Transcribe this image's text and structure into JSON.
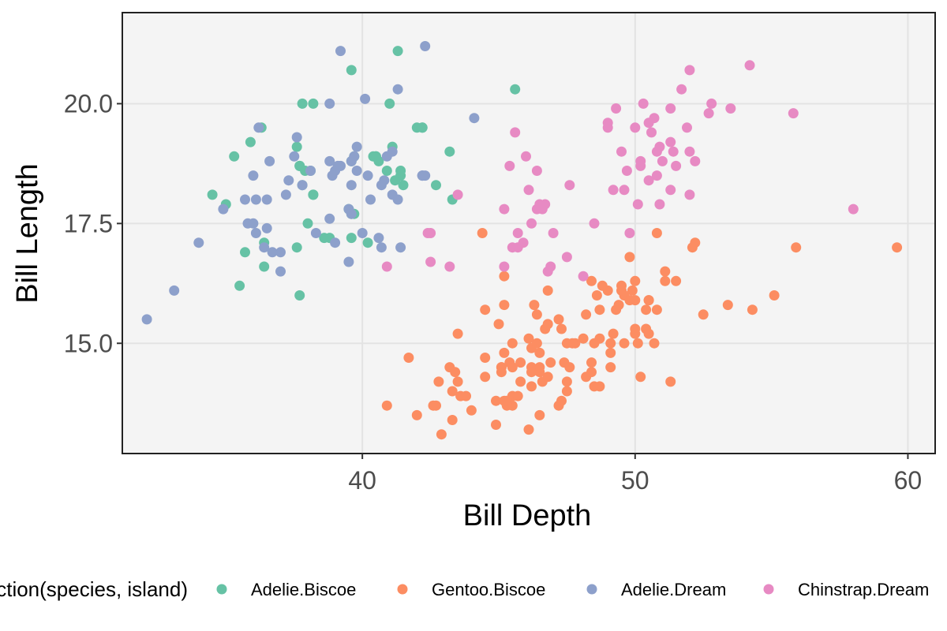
{
  "chart_data": {
    "type": "scatter",
    "xlabel": "Bill Depth",
    "ylabel": "Bill Length",
    "xlim": [
      31.2,
      61.0
    ],
    "ylim": [
      12.7,
      21.9
    ],
    "x_ticks": [
      40,
      50,
      60
    ],
    "x_tick_labels": [
      "40",
      "50",
      "60"
    ],
    "y_ticks": [
      15.0,
      17.5,
      20.0
    ],
    "y_tick_labels": [
      "15.0",
      "17.5",
      "20.0"
    ],
    "grid": true,
    "legend_title": "interaction(species, island)",
    "legend_position": "bottom",
    "series": [
      {
        "name": "Adelie.Biscoe",
        "color": "#66C2A5",
        "points": [
          [
            37.7,
            18.7
          ],
          [
            37.7,
            18.7
          ],
          [
            37.8,
            18.3
          ],
          [
            37.8,
            20.0
          ],
          [
            38.2,
            20.0
          ],
          [
            38.1,
            18.6
          ],
          [
            38.2,
            18.1
          ],
          [
            37.9,
            18.6
          ],
          [
            36.4,
            17.1
          ],
          [
            36.4,
            16.6
          ],
          [
            38.8,
            17.2
          ],
          [
            38.6,
            17.2
          ],
          [
            39.7,
            17.7
          ],
          [
            39.6,
            20.7
          ],
          [
            39.6,
            17.7
          ],
          [
            40.5,
            18.9
          ],
          [
            40.5,
            18.9
          ],
          [
            40.9,
            18.6
          ],
          [
            41.0,
            20.0
          ],
          [
            41.3,
            21.1
          ],
          [
            41.4,
            18.5
          ],
          [
            41.4,
            18.6
          ],
          [
            42.0,
            19.5
          ],
          [
            42.2,
            19.5
          ],
          [
            42.2,
            19.5
          ],
          [
            42.7,
            18.3
          ],
          [
            43.2,
            19.0
          ],
          [
            43.3,
            18.0
          ],
          [
            35.0,
            17.9
          ],
          [
            35.5,
            16.2
          ],
          [
            35.7,
            16.9
          ],
          [
            35.3,
            18.9
          ],
          [
            34.5,
            18.1
          ],
          [
            35.9,
            19.2
          ],
          [
            37.6,
            17.0
          ],
          [
            36.3,
            19.5
          ],
          [
            37.7,
            16.0
          ],
          [
            37.6,
            19.1
          ],
          [
            38.0,
            17.5
          ],
          [
            39.6,
            18.8
          ],
          [
            39.7,
            18.9
          ],
          [
            39.5,
            17.8
          ],
          [
            40.4,
            18.9
          ],
          [
            41.1,
            19.1
          ],
          [
            41.5,
            18.3
          ],
          [
            45.6,
            20.3
          ],
          [
            40.2,
            17.1
          ],
          [
            40.6,
            18.8
          ],
          [
            41.2,
            18.4
          ],
          [
            38.2,
            18.1
          ],
          [
            39.6,
            17.2
          ]
        ]
      },
      {
        "name": "Gentoo.Biscoe",
        "color": "#FC8D62",
        "points": [
          [
            46.1,
            13.2
          ],
          [
            50.0,
            16.3
          ],
          [
            48.7,
            14.1
          ],
          [
            50.0,
            15.2
          ],
          [
            47.6,
            14.5
          ],
          [
            46.5,
            13.5
          ],
          [
            45.4,
            14.6
          ],
          [
            46.7,
            15.3
          ],
          [
            43.3,
            13.4
          ],
          [
            46.8,
            15.4
          ],
          [
            40.9,
            13.7
          ],
          [
            49.0,
            16.1
          ],
          [
            45.5,
            13.7
          ],
          [
            48.4,
            14.6
          ],
          [
            45.8,
            14.6
          ],
          [
            49.3,
            15.7
          ],
          [
            42.0,
            13.5
          ],
          [
            49.2,
            15.2
          ],
          [
            46.2,
            14.5
          ],
          [
            48.7,
            15.1
          ],
          [
            50.2,
            14.3
          ],
          [
            45.1,
            14.5
          ],
          [
            46.5,
            14.5
          ],
          [
            46.3,
            15.8
          ],
          [
            42.9,
            13.1
          ],
          [
            46.1,
            15.1
          ],
          [
            44.5,
            14.3
          ],
          [
            47.8,
            15.0
          ],
          [
            48.2,
            14.3
          ],
          [
            50.0,
            15.3
          ],
          [
            47.3,
            15.3
          ],
          [
            42.8,
            14.2
          ],
          [
            45.1,
            14.5
          ],
          [
            59.6,
            17.0
          ],
          [
            49.1,
            14.8
          ],
          [
            48.4,
            16.3
          ],
          [
            42.6,
            13.7
          ],
          [
            44.4,
            17.3
          ],
          [
            44.0,
            13.6
          ],
          [
            48.7,
            15.7
          ],
          [
            42.7,
            13.7
          ],
          [
            49.6,
            16.0
          ],
          [
            45.3,
            13.7
          ],
          [
            49.6,
            15.0
          ],
          [
            50.5,
            15.9
          ],
          [
            43.6,
            13.9
          ],
          [
            45.5,
            13.9
          ],
          [
            50.5,
            15.9
          ],
          [
            44.9,
            13.3
          ],
          [
            45.2,
            15.8
          ],
          [
            46.6,
            14.2
          ],
          [
            48.5,
            14.1
          ],
          [
            45.1,
            14.4
          ],
          [
            50.1,
            15.0
          ],
          [
            46.5,
            14.4
          ],
          [
            45.0,
            15.4
          ],
          [
            43.8,
            13.9
          ],
          [
            45.5,
            15.0
          ],
          [
            43.2,
            14.5
          ],
          [
            50.4,
            15.3
          ],
          [
            45.3,
            13.8
          ],
          [
            46.2,
            14.9
          ],
          [
            45.7,
            13.9
          ],
          [
            54.3,
            15.7
          ],
          [
            45.8,
            14.2
          ],
          [
            49.8,
            16.8
          ],
          [
            46.2,
            14.4
          ],
          [
            49.5,
            16.2
          ],
          [
            43.5,
            14.2
          ],
          [
            50.7,
            15.0
          ],
          [
            47.7,
            15.0
          ],
          [
            46.4,
            15.6
          ],
          [
            48.2,
            15.6
          ],
          [
            46.5,
            14.8
          ],
          [
            46.4,
            15.0
          ],
          [
            48.6,
            16.0
          ],
          [
            47.5,
            14.2
          ],
          [
            51.1,
            16.3
          ],
          [
            45.2,
            13.8
          ],
          [
            45.2,
            16.4
          ],
          [
            49.1,
            14.5
          ],
          [
            52.5,
            15.6
          ],
          [
            47.4,
            14.6
          ],
          [
            50.0,
            15.9
          ],
          [
            44.9,
            13.8
          ],
          [
            50.8,
            17.3
          ],
          [
            43.4,
            14.4
          ],
          [
            51.3,
            14.2
          ],
          [
            47.5,
            14.0
          ],
          [
            52.1,
            17.0
          ],
          [
            47.5,
            15.0
          ],
          [
            52.2,
            17.1
          ],
          [
            45.5,
            14.5
          ],
          [
            49.5,
            16.1
          ],
          [
            44.5,
            14.7
          ],
          [
            50.8,
            15.7
          ],
          [
            49.4,
            15.8
          ],
          [
            46.9,
            14.6
          ],
          [
            48.4,
            14.4
          ],
          [
            51.1,
            16.5
          ],
          [
            48.5,
            15.0
          ],
          [
            55.9,
            17.0
          ],
          [
            47.2,
            15.5
          ],
          [
            49.1,
            15.0
          ],
          [
            47.3,
            13.8
          ],
          [
            46.8,
            16.1
          ],
          [
            41.7,
            14.7
          ],
          [
            53.4,
            15.8
          ],
          [
            43.3,
            14.0
          ],
          [
            48.1,
            15.1
          ],
          [
            50.5,
            15.2
          ],
          [
            49.8,
            15.9
          ],
          [
            43.5,
            15.2
          ],
          [
            51.5,
            16.3
          ],
          [
            46.2,
            14.1
          ],
          [
            55.1,
            16.0
          ],
          [
            44.5,
            15.7
          ],
          [
            48.8,
            16.2
          ],
          [
            47.2,
            13.7
          ],
          [
            46.8,
            14.3
          ],
          [
            50.4,
            15.7
          ],
          [
            45.2,
            14.8
          ],
          [
            49.9,
            16.1
          ]
        ]
      },
      {
        "name": "Adelie.Dream",
        "color": "#8DA0CB",
        "points": [
          [
            39.5,
            16.7
          ],
          [
            37.2,
            18.1
          ],
          [
            39.5,
            17.8
          ],
          [
            40.9,
            18.9
          ],
          [
            36.4,
            17.0
          ],
          [
            39.2,
            21.1
          ],
          [
            38.8,
            20.0
          ],
          [
            42.2,
            18.5
          ],
          [
            37.6,
            19.3
          ],
          [
            39.8,
            19.1
          ],
          [
            36.5,
            18.0
          ],
          [
            40.8,
            18.4
          ],
          [
            36.0,
            18.5
          ],
          [
            44.1,
            19.7
          ],
          [
            37.0,
            16.9
          ],
          [
            39.6,
            18.8
          ],
          [
            41.1,
            19.0
          ],
          [
            37.5,
            18.9
          ],
          [
            42.3,
            21.2
          ],
          [
            39.6,
            17.7
          ],
          [
            40.7,
            17.0
          ],
          [
            41.3,
            20.3
          ],
          [
            40.3,
            18.0
          ],
          [
            33.1,
            16.1
          ],
          [
            37.0,
            16.5
          ],
          [
            38.8,
            17.6
          ],
          [
            40.6,
            17.2
          ],
          [
            41.4,
            17.0
          ],
          [
            40.1,
            20.1
          ],
          [
            39.0,
            18.6
          ],
          [
            35.8,
            17.5
          ],
          [
            36.1,
            17.3
          ],
          [
            39.0,
            17.1
          ],
          [
            36.0,
            17.5
          ],
          [
            42.3,
            18.5
          ],
          [
            39.8,
            18.6
          ],
          [
            37.3,
            18.4
          ],
          [
            36.6,
            18.8
          ],
          [
            36.1,
            18.0
          ],
          [
            34.0,
            17.1
          ],
          [
            39.6,
            18.3
          ],
          [
            32.1,
            15.5
          ],
          [
            40.7,
            18.3
          ],
          [
            35.7,
            18.0
          ],
          [
            39.7,
            18.9
          ],
          [
            39.2,
            18.7
          ],
          [
            38.8,
            18.8
          ],
          [
            41.1,
            18.1
          ],
          [
            36.2,
            19.5
          ],
          [
            41.3,
            18.0
          ],
          [
            38.1,
            18.6
          ],
          [
            39.1,
            18.7
          ],
          [
            36.5,
            17.4
          ],
          [
            40.0,
            17.3
          ],
          [
            37.8,
            18.3
          ],
          [
            36.7,
            16.9
          ],
          [
            40.2,
            18.5
          ],
          [
            42.2,
            18.5
          ],
          [
            38.3,
            17.3
          ],
          [
            38.9,
            18.5
          ],
          [
            34.9,
            17.8
          ]
        ]
      },
      {
        "name": "Chinstrap.Dream",
        "color": "#E78AC3",
        "points": [
          [
            46.5,
            17.9
          ],
          [
            50.0,
            19.5
          ],
          [
            51.3,
            19.2
          ],
          [
            45.4,
            18.7
          ],
          [
            52.7,
            19.8
          ],
          [
            45.2,
            17.8
          ],
          [
            46.1,
            18.2
          ],
          [
            51.3,
            18.2
          ],
          [
            46.0,
            18.9
          ],
          [
            51.3,
            19.9
          ],
          [
            46.6,
            17.8
          ],
          [
            51.7,
            20.3
          ],
          [
            47.0,
            17.3
          ],
          [
            52.0,
            18.1
          ],
          [
            45.9,
            17.1
          ],
          [
            50.5,
            19.6
          ],
          [
            50.3,
            20.0
          ],
          [
            58.0,
            17.8
          ],
          [
            46.4,
            18.6
          ],
          [
            49.2,
            18.2
          ],
          [
            42.4,
            17.3
          ],
          [
            48.5,
            17.5
          ],
          [
            43.2,
            16.6
          ],
          [
            50.6,
            19.4
          ],
          [
            46.7,
            17.9
          ],
          [
            52.0,
            19.0
          ],
          [
            50.5,
            18.4
          ],
          [
            49.5,
            19.0
          ],
          [
            46.4,
            17.8
          ],
          [
            52.8,
            20.0
          ],
          [
            40.9,
            16.6
          ],
          [
            54.2,
            20.8
          ],
          [
            42.5,
            16.7
          ],
          [
            51.0,
            18.8
          ],
          [
            49.7,
            18.6
          ],
          [
            47.5,
            16.8
          ],
          [
            47.6,
            18.3
          ],
          [
            52.0,
            20.7
          ],
          [
            46.9,
            16.6
          ],
          [
            53.5,
            19.9
          ],
          [
            49.0,
            19.5
          ],
          [
            46.2,
            17.5
          ],
          [
            50.9,
            19.1
          ],
          [
            45.5,
            17.0
          ],
          [
            50.9,
            17.9
          ],
          [
            50.8,
            18.5
          ],
          [
            50.1,
            17.9
          ],
          [
            49.0,
            19.6
          ],
          [
            51.5,
            18.7
          ],
          [
            49.8,
            17.3
          ],
          [
            48.1,
            16.4
          ],
          [
            51.4,
            19.0
          ],
          [
            45.7,
            17.3
          ],
          [
            50.7,
            19.7
          ],
          [
            42.5,
            17.3
          ],
          [
            52.2,
            18.8
          ],
          [
            45.2,
            16.6
          ],
          [
            49.3,
            19.9
          ],
          [
            50.2,
            18.8
          ],
          [
            45.6,
            19.4
          ],
          [
            51.9,
            19.5
          ],
          [
            46.8,
            16.5
          ],
          [
            45.7,
            17.0
          ],
          [
            55.8,
            19.8
          ],
          [
            43.5,
            18.1
          ],
          [
            49.6,
            18.2
          ],
          [
            50.8,
            19.0
          ],
          [
            50.2,
            18.7
          ]
        ]
      }
    ]
  }
}
